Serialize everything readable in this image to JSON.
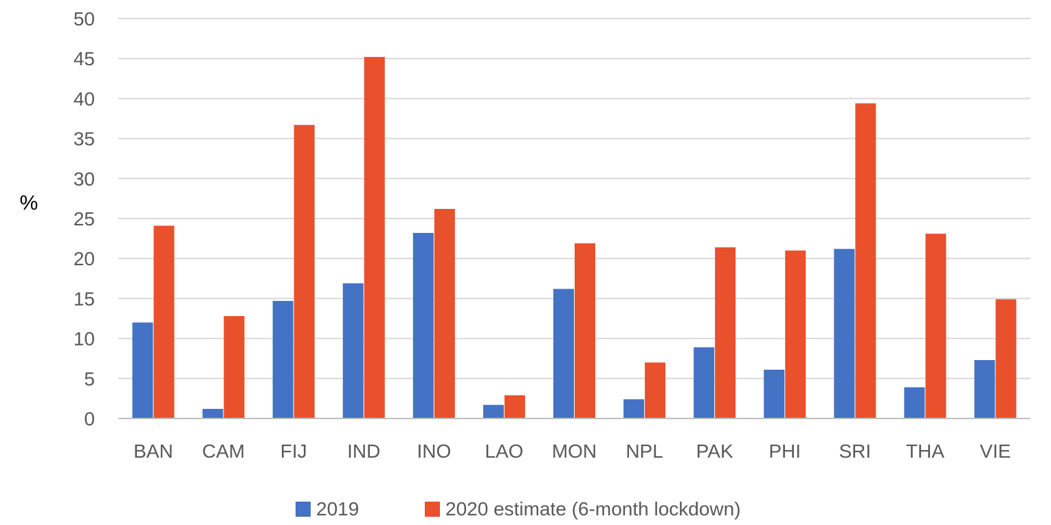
{
  "chart_data": {
    "type": "bar",
    "title": "",
    "xlabel": "",
    "ylabel": "%",
    "ylim": [
      0,
      50
    ],
    "yticks": [
      0,
      5,
      10,
      15,
      20,
      25,
      30,
      35,
      40,
      45,
      50
    ],
    "grid": true,
    "legend_position": "bottom",
    "categories": [
      "BAN",
      "CAM",
      "FIJ",
      "IND",
      "INO",
      "LAO",
      "MON",
      "NPL",
      "PAK",
      "PHI",
      "SRI",
      "THA",
      "VIE"
    ],
    "series": [
      {
        "name": "2019",
        "color": "#4472c4",
        "values": [
          12.0,
          1.2,
          14.7,
          16.9,
          23.2,
          1.7,
          16.2,
          2.4,
          8.9,
          6.1,
          21.2,
          3.9,
          7.3
        ]
      },
      {
        "name": "2020 estimate (6-month lockdown)",
        "color": "#e8512c",
        "values": [
          24.1,
          12.8,
          36.7,
          45.2,
          26.2,
          2.9,
          21.9,
          7.0,
          21.4,
          21.0,
          39.4,
          23.1,
          14.9
        ]
      }
    ]
  }
}
